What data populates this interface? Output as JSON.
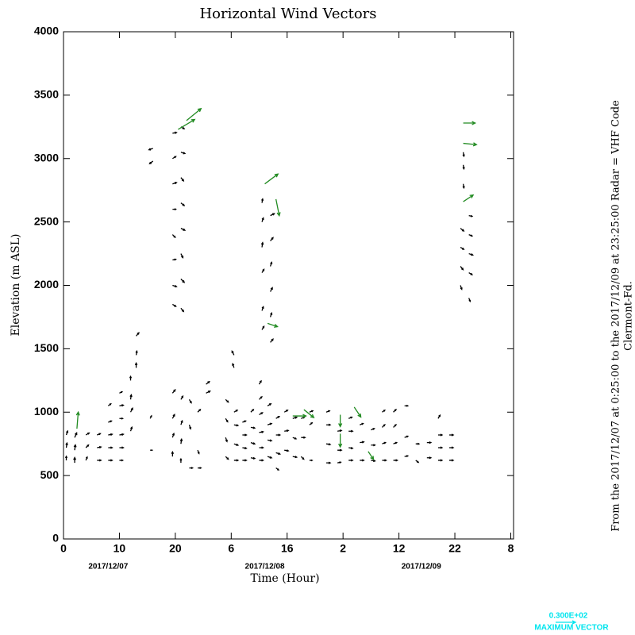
{
  "chart_data": {
    "type": "vector",
    "title": "Horizontal Wind Vectors",
    "y_label": "Elevation (m ASL)",
    "x_label": "Time (Hour)",
    "side_text": [
      "From the 2017/12/07 at  0:25:00 to the 2017/12/09 at 23:25:00 Radar = VHF Code",
      "Clermont-Fd."
    ],
    "xlim": [
      0,
      80.5
    ],
    "ylim": [
      0,
      4000
    ],
    "xticks": [
      0,
      10,
      20,
      {
        "value": 30,
        "label": "6"
      },
      {
        "value": 40,
        "label": "16"
      },
      {
        "value": 50,
        "label": "2"
      },
      {
        "value": 60,
        "label": "12"
      },
      {
        "value": 70,
        "label": "22"
      },
      {
        "value": 80,
        "label": "8"
      }
    ],
    "yticks": [
      0,
      500,
      1000,
      1500,
      2000,
      2500,
      3000,
      3500,
      4000
    ],
    "date_labels": [
      {
        "value": 8,
        "label": "2017/12/07"
      },
      {
        "value": 36,
        "label": "2017/12/08"
      },
      {
        "value": 64,
        "label": "2017/12/09"
      }
    ],
    "key": {
      "value": 30,
      "label": "0.300E+02",
      "text": "MAXIMUM VECTOR",
      "color": "#00e5ee"
    },
    "series": [
      {
        "color": "#000000",
        "vectors": [
          [
            0.5,
            620,
            0,
            6
          ],
          [
            0.5,
            720,
            1,
            7
          ],
          [
            0.5,
            820,
            2,
            6
          ],
          [
            2,
            600,
            0,
            8
          ],
          [
            2,
            700,
            1,
            8
          ],
          [
            2,
            800,
            3,
            7
          ],
          [
            4,
            620,
            2,
            5
          ],
          [
            4,
            720,
            4,
            4
          ],
          [
            4,
            820,
            5,
            3
          ],
          [
            6,
            620,
            6,
            0
          ],
          [
            6,
            720,
            6,
            1
          ],
          [
            6,
            820,
            5,
            2
          ],
          [
            8,
            620,
            6,
            0
          ],
          [
            8,
            720,
            6,
            0
          ],
          [
            8,
            820,
            6,
            1
          ],
          [
            8,
            920,
            5,
            2
          ],
          [
            8,
            1050,
            4,
            3
          ],
          [
            10,
            620,
            5,
            0
          ],
          [
            10,
            720,
            6,
            0
          ],
          [
            10,
            820,
            6,
            1
          ],
          [
            10,
            950,
            5,
            0
          ],
          [
            10,
            1050,
            6,
            1
          ],
          [
            10,
            1150,
            4,
            2
          ],
          [
            12,
            850,
            2,
            6
          ],
          [
            12,
            1000,
            3,
            6
          ],
          [
            12,
            1100,
            1,
            7
          ],
          [
            12,
            1250,
            0,
            6
          ],
          [
            13,
            1350,
            0,
            7
          ],
          [
            13,
            1450,
            1,
            6
          ],
          [
            13,
            1600,
            4,
            5
          ],
          [
            15.5,
            700,
            3,
            0
          ],
          [
            15.5,
            950,
            2,
            4
          ],
          [
            16,
            2980,
            -5,
            -4
          ],
          [
            16,
            3080,
            -6,
            -2
          ],
          [
            19.5,
            1850,
            5,
            -3
          ],
          [
            19.5,
            2000,
            6,
            -2
          ],
          [
            19.5,
            2200,
            5,
            1
          ],
          [
            19.5,
            2400,
            4,
            -4
          ],
          [
            19.5,
            2600,
            5,
            0
          ],
          [
            19.5,
            2800,
            6,
            2
          ],
          [
            19.5,
            3000,
            5,
            3
          ],
          [
            19.5,
            3200,
            6,
            1
          ],
          [
            21,
            1820,
            4,
            -5
          ],
          [
            21,
            2050,
            5,
            -5
          ],
          [
            21,
            2250,
            3,
            -6
          ],
          [
            21,
            2450,
            6,
            -3
          ],
          [
            21,
            2650,
            5,
            -4
          ],
          [
            21,
            2850,
            4,
            -5
          ],
          [
            21,
            3050,
            6,
            -2
          ],
          [
            21,
            3250,
            5,
            -3
          ],
          [
            19.5,
            650,
            0,
            7
          ],
          [
            19.5,
            800,
            2,
            6
          ],
          [
            19.5,
            950,
            3,
            6
          ],
          [
            19.5,
            1150,
            4,
            5
          ],
          [
            21,
            600,
            0,
            6
          ],
          [
            21,
            750,
            1,
            7
          ],
          [
            21,
            900,
            2,
            6
          ],
          [
            21,
            1100,
            3,
            5
          ],
          [
            22.5,
            560,
            5,
            0
          ],
          [
            22.5,
            900,
            2,
            -6
          ],
          [
            22.5,
            1100,
            3,
            -5
          ],
          [
            24,
            560,
            5,
            0
          ],
          [
            24,
            700,
            2,
            -5
          ],
          [
            24,
            1000,
            4,
            4
          ],
          [
            25.5,
            1150,
            6,
            3
          ],
          [
            25.5,
            1220,
            5,
            4
          ],
          [
            29,
            650,
            4,
            -4
          ],
          [
            29,
            800,
            2,
            -6
          ],
          [
            29,
            950,
            3,
            -5
          ],
          [
            29,
            1100,
            4,
            -4
          ],
          [
            30.5,
            620,
            6,
            0
          ],
          [
            30.5,
            750,
            6,
            -2
          ],
          [
            30.5,
            900,
            6,
            -1
          ],
          [
            30.5,
            1000,
            5,
            3
          ],
          [
            30.5,
            1350,
            -2,
            6
          ],
          [
            30.5,
            1450,
            -3,
            6
          ],
          [
            32,
            620,
            6,
            0
          ],
          [
            32,
            720,
            6,
            -1
          ],
          [
            32,
            820,
            6,
            0
          ],
          [
            32,
            920,
            5,
            2
          ],
          [
            33.5,
            640,
            6,
            -1
          ],
          [
            33.5,
            760,
            6,
            -2
          ],
          [
            33.5,
            880,
            6,
            -1
          ],
          [
            33.5,
            1000,
            4,
            4
          ],
          [
            35,
            620,
            6,
            0
          ],
          [
            35,
            720,
            6,
            0
          ],
          [
            35,
            840,
            6,
            1
          ],
          [
            35,
            980,
            5,
            3
          ],
          [
            35,
            1100,
            4,
            4
          ],
          [
            35,
            1220,
            3,
            5
          ],
          [
            36.5,
            650,
            6,
            -2
          ],
          [
            36.5,
            780,
            6,
            -1
          ],
          [
            36.5,
            900,
            6,
            2
          ],
          [
            36.5,
            1050,
            5,
            3
          ],
          [
            38,
            560,
            4,
            -3
          ],
          [
            38,
            680,
            6,
            -2
          ],
          [
            38,
            820,
            6,
            0
          ],
          [
            38,
            950,
            5,
            3
          ],
          [
            39.5,
            700,
            6,
            -1
          ],
          [
            39.5,
            850,
            6,
            1
          ],
          [
            39.5,
            1000,
            5,
            3
          ],
          [
            41,
            650,
            6,
            -1
          ],
          [
            41,
            800,
            5,
            -2
          ],
          [
            41,
            950,
            6,
            2
          ],
          [
            42.5,
            650,
            4,
            -4
          ],
          [
            42.5,
            800,
            6,
            0
          ],
          [
            42.5,
            950,
            5,
            2
          ],
          [
            44,
            620,
            4,
            0
          ],
          [
            44,
            900,
            4,
            3
          ],
          [
            44,
            1000,
            5,
            2
          ],
          [
            35.5,
            1650,
            3,
            5
          ],
          [
            35.5,
            1800,
            2,
            6
          ],
          [
            35.5,
            2100,
            3,
            5
          ],
          [
            35.5,
            2300,
            1,
            7
          ],
          [
            35.5,
            2500,
            2,
            6
          ],
          [
            35.5,
            2650,
            1,
            6
          ],
          [
            37,
            1550,
            4,
            5
          ],
          [
            37,
            1750,
            2,
            6
          ],
          [
            37,
            1950,
            3,
            6
          ],
          [
            37,
            2150,
            2,
            6
          ],
          [
            37,
            2350,
            4,
            5
          ],
          [
            37,
            2550,
            6,
            3
          ],
          [
            47,
            600,
            6,
            0
          ],
          [
            47,
            750,
            6,
            -1
          ],
          [
            47,
            900,
            6,
            0
          ],
          [
            47,
            1000,
            5,
            2
          ],
          [
            49,
            600,
            5,
            1
          ],
          [
            49,
            700,
            6,
            0
          ],
          [
            49,
            850,
            6,
            1
          ],
          [
            51,
            620,
            6,
            0
          ],
          [
            51,
            720,
            6,
            -1
          ],
          [
            51,
            850,
            6,
            0
          ],
          [
            51,
            950,
            5,
            2
          ],
          [
            53,
            620,
            6,
            0
          ],
          [
            53,
            760,
            6,
            1
          ],
          [
            53,
            900,
            5,
            2
          ],
          [
            55,
            620,
            6,
            -1
          ],
          [
            55,
            740,
            6,
            0
          ],
          [
            55,
            860,
            5,
            2
          ],
          [
            57,
            620,
            6,
            0
          ],
          [
            57,
            750,
            5,
            2
          ],
          [
            57,
            880,
            4,
            4
          ],
          [
            57,
            1000,
            4,
            3
          ],
          [
            59,
            620,
            6,
            0
          ],
          [
            59,
            750,
            5,
            2
          ],
          [
            59,
            880,
            4,
            4
          ],
          [
            59,
            1000,
            4,
            4
          ],
          [
            61,
            650,
            5,
            1
          ],
          [
            61,
            800,
            5,
            2
          ],
          [
            61,
            1050,
            5,
            0
          ],
          [
            63,
            620,
            4,
            -3
          ],
          [
            63,
            750,
            5,
            0
          ],
          [
            65,
            640,
            6,
            0
          ],
          [
            65,
            760,
            6,
            0
          ],
          [
            67,
            620,
            6,
            0
          ],
          [
            67,
            720,
            6,
            0
          ],
          [
            67,
            820,
            6,
            0
          ],
          [
            67,
            950,
            3,
            5
          ],
          [
            69,
            620,
            6,
            0
          ],
          [
            69,
            720,
            6,
            0
          ],
          [
            69,
            820,
            6,
            0
          ],
          [
            71,
            2000,
            2,
            -6
          ],
          [
            71,
            2150,
            4,
            -5
          ],
          [
            71,
            2300,
            5,
            -3
          ],
          [
            71,
            2450,
            5,
            -4
          ],
          [
            72.5,
            1900,
            2,
            -5
          ],
          [
            72.5,
            2100,
            5,
            -3
          ],
          [
            72.5,
            2250,
            6,
            -2
          ],
          [
            72.5,
            2400,
            5,
            -2
          ],
          [
            72.5,
            2550,
            5,
            -1
          ],
          [
            71.5,
            2800,
            1,
            -6
          ],
          [
            71.5,
            2950,
            1,
            -6
          ],
          [
            71.5,
            3050,
            1,
            -6
          ]
        ]
      },
      {
        "color": "#228b22",
        "vectors": [
          [
            2.4,
            870,
            2,
            25
          ],
          [
            20.5,
            3230,
            25,
            15
          ],
          [
            22,
            3300,
            22,
            18
          ],
          [
            36,
            2800,
            20,
            15
          ],
          [
            38,
            2680,
            5,
            -25
          ],
          [
            36.5,
            1700,
            15,
            -5
          ],
          [
            43,
            1020,
            15,
            -12
          ],
          [
            41,
            970,
            20,
            0
          ],
          [
            49.5,
            980,
            0,
            -18
          ],
          [
            49.5,
            830,
            0,
            -20
          ],
          [
            52,
            1040,
            10,
            -15
          ],
          [
            54.5,
            690,
            8,
            -12
          ],
          [
            71.5,
            3280,
            18,
            0
          ],
          [
            71.5,
            3120,
            20,
            -2
          ],
          [
            71.5,
            2660,
            15,
            10
          ]
        ]
      }
    ]
  }
}
